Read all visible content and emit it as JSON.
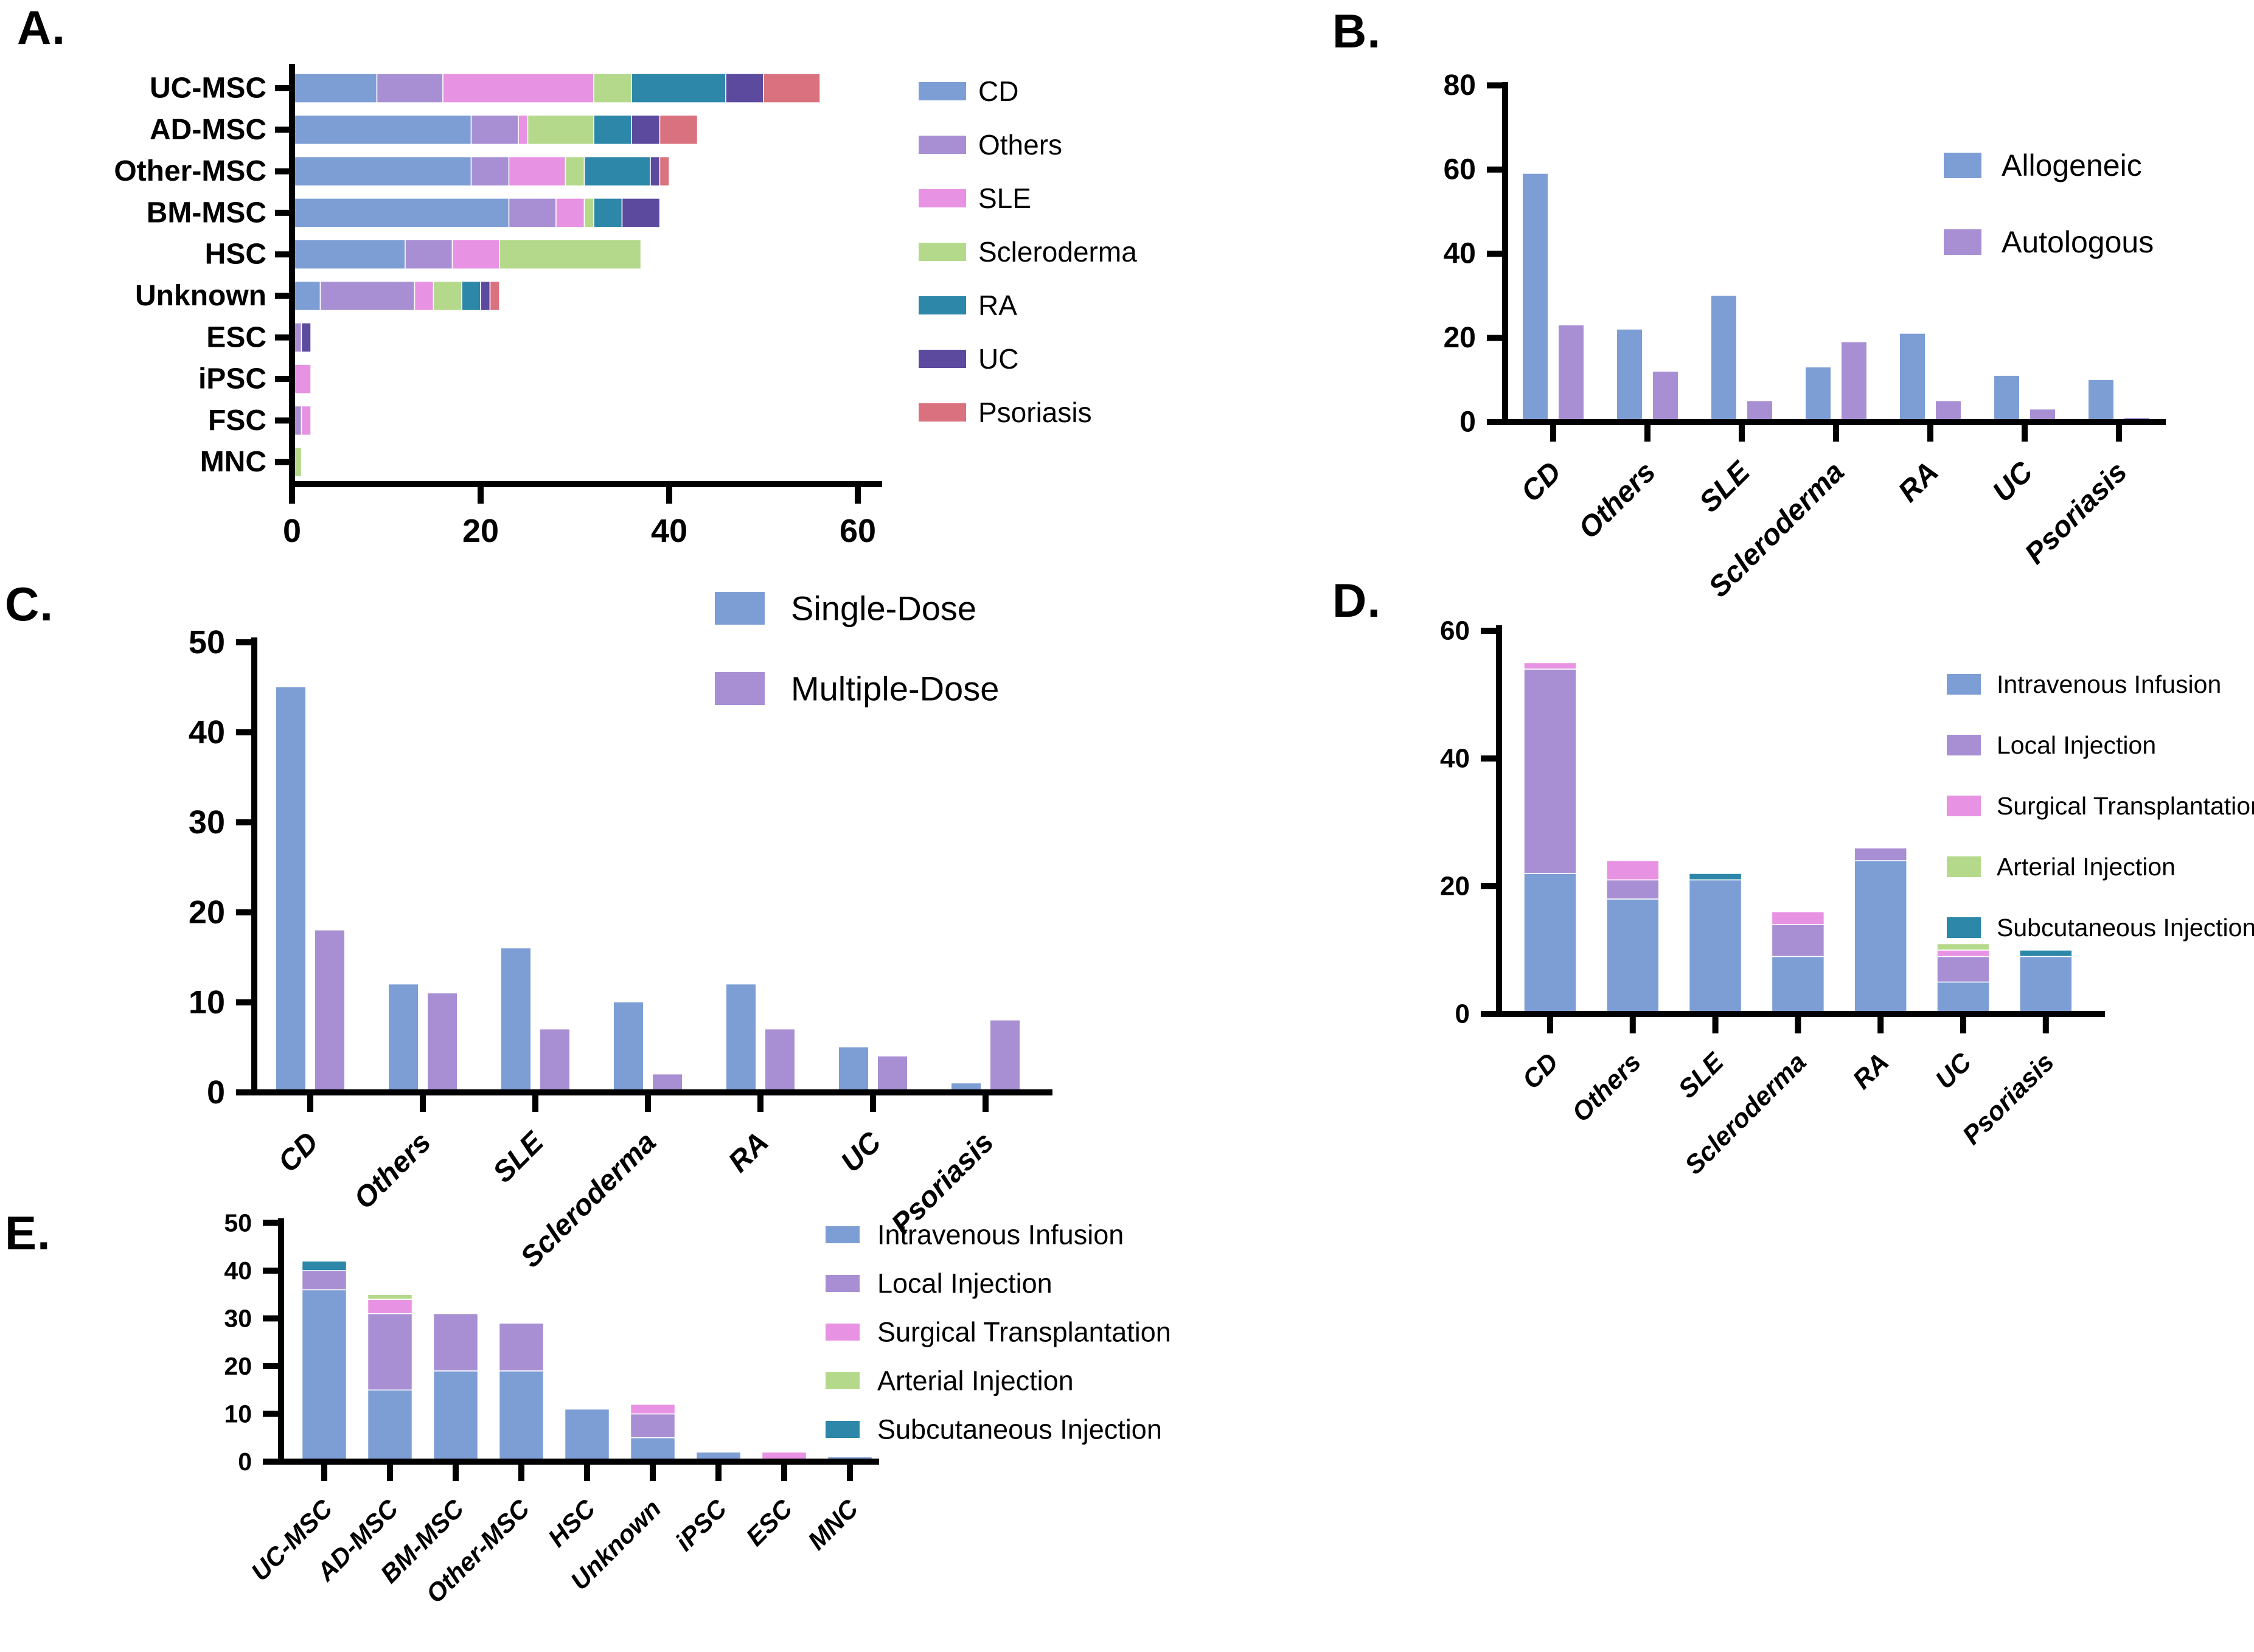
{
  "figure": {
    "background": "#ffffff",
    "text_color": "#000000"
  },
  "colors": {
    "blue": "#7d9ed5",
    "purple": "#a88fd3",
    "magenta": "#e892e3",
    "green": "#b5d98b",
    "teal": "#2c87a8",
    "dark_purple": "#5c4a9e",
    "salmon": "#d9727e"
  },
  "panels": [
    {
      "id": "A",
      "label": "A."
    },
    {
      "id": "B",
      "label": "B."
    },
    {
      "id": "C",
      "label": "C."
    },
    {
      "id": "D",
      "label": "D."
    },
    {
      "id": "E",
      "label": "E."
    }
  ],
  "chart_data": [
    {
      "panel": "A",
      "type": "bar",
      "orientation": "horizontal",
      "stacked": true,
      "title": "",
      "xlabel": "",
      "ylabel": "",
      "categories": [
        "UC-MSC",
        "AD-MSC",
        "Other-MSC",
        "BM-MSC",
        "HSC",
        "Unknown",
        "ESC",
        "iPSC",
        "FSC",
        "MNC"
      ],
      "series": [
        {
          "name": "CD",
          "color": "#7d9ed5",
          "values": [
            9,
            19,
            19,
            23,
            12,
            3,
            0,
            0,
            0,
            0
          ]
        },
        {
          "name": "Others",
          "color": "#a88fd3",
          "values": [
            7,
            5,
            4,
            5,
            5,
            10,
            1,
            0,
            1,
            0
          ]
        },
        {
          "name": "SLE",
          "color": "#e892e3",
          "values": [
            16,
            1,
            6,
            3,
            5,
            2,
            0,
            2,
            1,
            0
          ]
        },
        {
          "name": "Scleroderma",
          "color": "#b5d98b",
          "values": [
            4,
            7,
            2,
            1,
            15,
            3,
            0,
            0,
            0,
            1
          ]
        },
        {
          "name": "RA",
          "color": "#2c87a8",
          "values": [
            10,
            4,
            7,
            3,
            0,
            2,
            0,
            0,
            0,
            0
          ]
        },
        {
          "name": "UC",
          "color": "#5c4a9e",
          "values": [
            4,
            3,
            1,
            4,
            0,
            1,
            1,
            0,
            0,
            0
          ]
        },
        {
          "name": "Psoriasis",
          "color": "#d9727e",
          "values": [
            6,
            4,
            1,
            0,
            0,
            1,
            0,
            0,
            0,
            0
          ]
        }
      ],
      "xlim": [
        0,
        60
      ],
      "xticks": [
        0,
        20,
        40,
        60
      ],
      "grid": false,
      "legend_position": "right"
    },
    {
      "panel": "B",
      "type": "bar",
      "orientation": "vertical",
      "stacked": false,
      "title": "",
      "xlabel": "",
      "ylabel": "",
      "categories": [
        "CD",
        "Others",
        "SLE",
        "Scleroderma",
        "RA",
        "UC",
        "Psoriasis"
      ],
      "series": [
        {
          "name": "Allogeneic",
          "color": "#7d9ed5",
          "values": [
            59,
            22,
            30,
            13,
            21,
            11,
            10
          ]
        },
        {
          "name": "Autologous",
          "color": "#a88fd3",
          "values": [
            23,
            12,
            5,
            19,
            5,
            3,
            1
          ]
        }
      ],
      "ylim": [
        0,
        80
      ],
      "yticks": [
        0,
        20,
        40,
        60,
        80
      ],
      "grid": false,
      "legend_position": "top-right"
    },
    {
      "panel": "C",
      "type": "bar",
      "orientation": "vertical",
      "stacked": false,
      "title": "",
      "xlabel": "",
      "ylabel": "",
      "categories": [
        "CD",
        "Others",
        "SLE",
        "Scleroderma",
        "RA",
        "UC",
        "Psoriasis"
      ],
      "series": [
        {
          "name": "Single-Dose",
          "color": "#7d9ed5",
          "values": [
            45,
            12,
            16,
            10,
            12,
            5,
            1
          ]
        },
        {
          "name": "Multiple-Dose",
          "color": "#a88fd3",
          "values": [
            18,
            11,
            7,
            2,
            7,
            4,
            8
          ]
        }
      ],
      "ylim": [
        0,
        50
      ],
      "yticks": [
        0,
        10,
        20,
        30,
        40,
        50
      ],
      "grid": false,
      "legend_position": "top-right"
    },
    {
      "panel": "D",
      "type": "bar",
      "orientation": "vertical",
      "stacked": true,
      "title": "",
      "xlabel": "",
      "ylabel": "",
      "categories": [
        "CD",
        "Others",
        "SLE",
        "Scleroderma",
        "RA",
        "UC",
        "Psoriasis"
      ],
      "series": [
        {
          "name": "Intravenous Infusion",
          "color": "#7d9ed5",
          "values": [
            22,
            18,
            21,
            9,
            24,
            5,
            9
          ]
        },
        {
          "name": "Local Injection",
          "color": "#a88fd3",
          "values": [
            32,
            3,
            0,
            5,
            2,
            4,
            0
          ]
        },
        {
          "name": "Surgical Transplantation",
          "color": "#e892e3",
          "values": [
            1,
            3,
            0,
            2,
            0,
            1,
            0
          ]
        },
        {
          "name": "Arterial Injection",
          "color": "#b5d98b",
          "values": [
            0,
            0,
            0,
            0,
            0,
            1,
            0
          ]
        },
        {
          "name": "Subcutaneous Injection",
          "color": "#2c87a8",
          "values": [
            0,
            0,
            1,
            0,
            0,
            0,
            1
          ]
        }
      ],
      "ylim": [
        0,
        60
      ],
      "yticks": [
        0,
        20,
        40,
        60
      ],
      "grid": false,
      "legend_position": "right-inside"
    },
    {
      "panel": "E",
      "type": "bar",
      "orientation": "vertical",
      "stacked": true,
      "title": "",
      "xlabel": "",
      "ylabel": "",
      "categories": [
        "UC-MSC",
        "AD-MSC",
        "BM-MSC",
        "Other-MSC",
        "HSC",
        "Unknown",
        "iPSC",
        "ESC",
        "MNC"
      ],
      "series": [
        {
          "name": "Intravenous Infusion",
          "color": "#7d9ed5",
          "values": [
            36,
            15,
            19,
            19,
            11,
            5,
            2,
            0,
            1
          ]
        },
        {
          "name": "Local Injection",
          "color": "#a88fd3",
          "values": [
            4,
            16,
            12,
            10,
            0,
            5,
            0,
            0,
            0
          ]
        },
        {
          "name": "Surgical Transplantation",
          "color": "#e892e3",
          "values": [
            0,
            3,
            0,
            0,
            0,
            2,
            0,
            2,
            0
          ]
        },
        {
          "name": "Arterial Injection",
          "color": "#b5d98b",
          "values": [
            0,
            1,
            0,
            0,
            0,
            0,
            0,
            0,
            0
          ]
        },
        {
          "name": "Subcutaneous Injection",
          "color": "#2c87a8",
          "values": [
            2,
            0,
            0,
            0,
            0,
            0,
            0,
            0,
            0
          ]
        }
      ],
      "ylim": [
        0,
        50
      ],
      "yticks": [
        0,
        10,
        20,
        30,
        40,
        50
      ],
      "grid": false,
      "legend_position": "right-inside"
    }
  ]
}
